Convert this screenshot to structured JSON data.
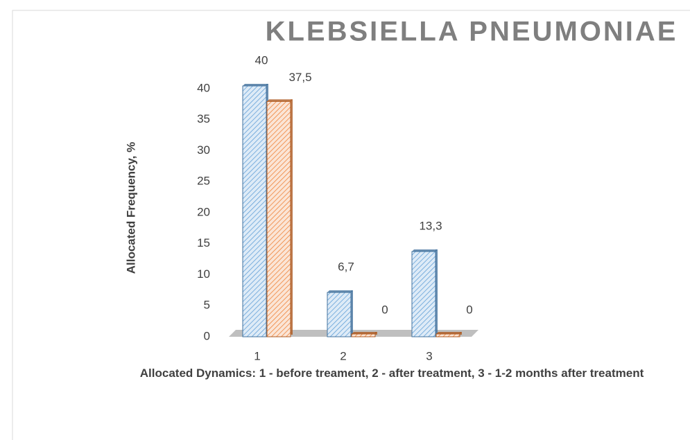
{
  "chart_data": {
    "type": "bar",
    "title": "KLEBSIELLA PNEUMONIAE",
    "y_label": "Allocated Frequency, %",
    "x_label": "Allocated Dynamics: 1 - before treament, 2 - after treatment, 3 - 1-2 months after treatment",
    "categories": [
      "1",
      "2",
      "3"
    ],
    "series": [
      {
        "color": "#5b9bd5",
        "values": [
          40,
          6.7,
          13.3
        ],
        "value_labels": [
          "40",
          "6,7",
          "13,3"
        ]
      },
      {
        "color": "#ed7d31",
        "values": [
          37.5,
          0,
          0
        ],
        "value_labels": [
          "37,5",
          "0",
          "0"
        ]
      }
    ],
    "ylim": [
      0,
      40
    ],
    "yticks": [
      0,
      5,
      10,
      15,
      20,
      25,
      30,
      35,
      40
    ]
  }
}
